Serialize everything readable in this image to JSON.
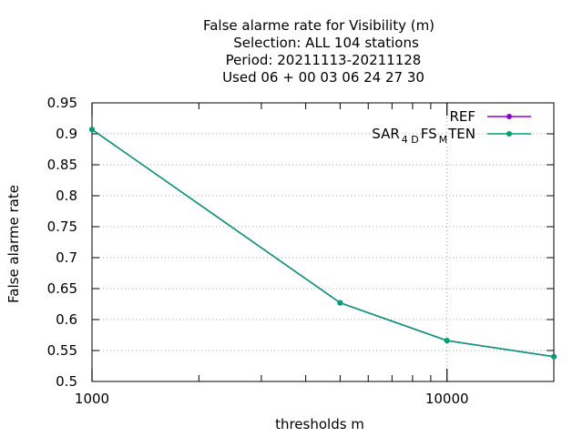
{
  "chart_data": {
    "type": "line",
    "title_lines": [
      "False alarme rate  for Visibility (m)",
      "Selection: ALL    104 stations",
      "Period: 20211113-20211128",
      "Used  06 + 00 03 06 24 27 30"
    ],
    "xlabel": "thresholds m",
    "ylabel": "False alarme rate",
    "x_scale": "log",
    "xlim": [
      1000,
      20000
    ],
    "ylim": [
      0.5,
      0.95
    ],
    "x_ticks": [
      1000,
      10000
    ],
    "x_tick_labels": [
      "1000",
      "10000"
    ],
    "y_ticks": [
      0.5,
      0.55,
      0.6,
      0.65,
      0.7,
      0.75,
      0.8,
      0.85,
      0.9,
      0.95
    ],
    "y_tick_labels": [
      "0.5",
      "0.55",
      "0.6",
      "0.65",
      "0.7",
      "0.75",
      "0.8",
      "0.85",
      "0.9",
      "0.95"
    ],
    "grid": true,
    "legend_position": "top-right",
    "series": [
      {
        "name": "REF",
        "legend": {
          "main": "REF"
        },
        "color": "#9400d3",
        "x": [
          1000,
          5000,
          10000,
          20000
        ],
        "y": [
          0.907,
          0.627,
          0.566,
          0.54
        ]
      },
      {
        "name": "SAR_{4D}FS_{M}TEN",
        "legend": {
          "pre": "SAR",
          "sub1": "4 D",
          "mid": "FS",
          "sub2": "M",
          "post": "TEN"
        },
        "color": "#009e73",
        "x": [
          1000,
          5000,
          10000,
          20000
        ],
        "y": [
          0.907,
          0.627,
          0.566,
          0.54
        ]
      }
    ]
  }
}
